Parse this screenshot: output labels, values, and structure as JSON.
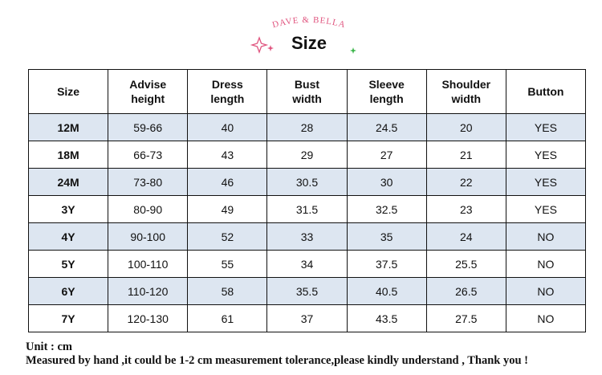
{
  "header": {
    "brand": "DAVE & BELLA",
    "title": "Size"
  },
  "table": {
    "headers": [
      [
        "Size"
      ],
      [
        "Advise",
        "height"
      ],
      [
        "Dress",
        "length"
      ],
      [
        "Bust",
        "width"
      ],
      [
        "Sleeve",
        "length"
      ],
      [
        "Shoulder",
        "width"
      ],
      [
        "Button"
      ]
    ],
    "rows": [
      [
        "12M",
        "59-66",
        "40",
        "28",
        "24.5",
        "20",
        "YES"
      ],
      [
        "18M",
        "66-73",
        "43",
        "29",
        "27",
        "21",
        "YES"
      ],
      [
        "24M",
        "73-80",
        "46",
        "30.5",
        "30",
        "22",
        "YES"
      ],
      [
        "3Y",
        "80-90",
        "49",
        "31.5",
        "32.5",
        "23",
        "YES"
      ],
      [
        "4Y",
        "90-100",
        "52",
        "33",
        "35",
        "24",
        "NO"
      ],
      [
        "5Y",
        "100-110",
        "55",
        "34",
        "37.5",
        "25.5",
        "NO"
      ],
      [
        "6Y",
        "110-120",
        "58",
        "35.5",
        "40.5",
        "26.5",
        "NO"
      ],
      [
        "7Y",
        "120-130",
        "61",
        "37",
        "43.5",
        "27.5",
        "NO"
      ]
    ]
  },
  "footer": {
    "unit": "Unit : cm",
    "note": "Measured by hand ,it could be 1-2 cm measurement tolerance,please kindly understand , Thank you !"
  }
}
